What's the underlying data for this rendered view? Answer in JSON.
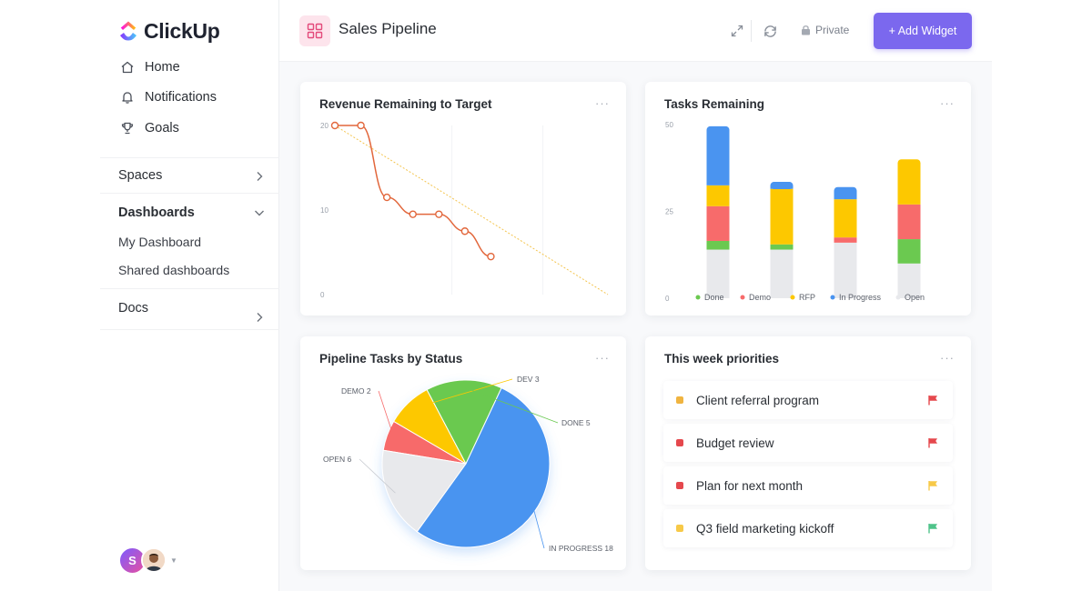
{
  "app": {
    "logo_text": "ClickUp"
  },
  "sidebar": {
    "nav": [
      {
        "label": "Home",
        "icon": "home-icon"
      },
      {
        "label": "Notifications",
        "icon": "bell-icon"
      },
      {
        "label": "Goals",
        "icon": "trophy-icon"
      }
    ],
    "spaces_label": "Spaces",
    "dashboards_label": "Dashboards",
    "dashboards_items": [
      "My Dashboard",
      "Shared dashboards"
    ],
    "docs_label": "Docs",
    "avatar_initial": "S"
  },
  "header": {
    "title": "Sales Pipeline",
    "private_label": "Private",
    "add_widget_label": "+ Add Widget"
  },
  "colors": {
    "accent": "#7b68ee",
    "done": "#6bc950",
    "demo": "#f76b6b",
    "rfp": "#fdc800",
    "in_progress": "#4a94f0",
    "open": "#e8e9ec",
    "line": "#e2673c",
    "trend": "#f4c54f"
  },
  "revenue_chart": {
    "title": "Revenue Remaining to Target",
    "menu": "···",
    "chart_data": {
      "type": "line",
      "title": "Revenue Remaining to Target",
      "y_ticks": [
        "20",
        "10",
        "0"
      ],
      "ylim": [
        0,
        20
      ],
      "x": [
        0,
        1,
        2,
        3,
        4,
        5,
        6
      ],
      "xlim": [
        0,
        10.5
      ],
      "series": [
        {
          "values": [
            20,
            20,
            11.5,
            9.5,
            9.5,
            7.5,
            4.5
          ]
        },
        {
          "values": [
            20,
            0
          ],
          "x": [
            0,
            10.5
          ],
          "style": "dashed"
        }
      ]
    }
  },
  "tasks_chart": {
    "title": "Tasks Remaining",
    "menu": "···",
    "chart_data": {
      "type": "bar",
      "stacked": true,
      "title": "Tasks Remaining",
      "y_ticks": [
        "50",
        "25",
        "0"
      ],
      "ylim": [
        0,
        50
      ],
      "categories": [
        "",
        "",
        "",
        ""
      ],
      "series": [
        {
          "name": "Open",
          "values": [
            14,
            14,
            16,
            10
          ]
        },
        {
          "name": "Done",
          "values": [
            2.5,
            1.5,
            0,
            7
          ]
        },
        {
          "name": "Demo",
          "values": [
            10,
            0,
            1.5,
            10
          ]
        },
        {
          "name": "RFP",
          "values": [
            6,
            16,
            11,
            13
          ]
        },
        {
          "name": "In Progress",
          "values": [
            17,
            2,
            3.5,
            0
          ]
        }
      ],
      "legend": [
        "Done",
        "Demo",
        "RFP",
        "In Progress",
        "Open"
      ],
      "legend_position": "bottom"
    }
  },
  "pie_chart": {
    "title": "Pipeline Tasks by Status",
    "menu": "···",
    "chart_data": {
      "type": "pie",
      "title": "Pipeline Tasks by Status",
      "slices": [
        {
          "label": "DEMO 2",
          "value": 2
        },
        {
          "label": "DEV 3",
          "value": 3
        },
        {
          "label": "DONE 5",
          "value": 5
        },
        {
          "label": "IN PROGRESS 18",
          "value": 18
        },
        {
          "label": "OPEN 6",
          "value": 6
        }
      ]
    }
  },
  "priorities": {
    "title": "This week priorities",
    "menu": "···",
    "items": [
      {
        "label": "Client referral program",
        "dot": "#f0b440",
        "flag": "#e5484d"
      },
      {
        "label": "Budget review",
        "dot": "#e5484d",
        "flag": "#e5484d"
      },
      {
        "label": "Plan for next month",
        "dot": "#e5484d",
        "flag": "#f7c948"
      },
      {
        "label": "Q3 field marketing kickoff",
        "dot": "#f7c948",
        "flag": "#4fc38a"
      }
    ]
  }
}
